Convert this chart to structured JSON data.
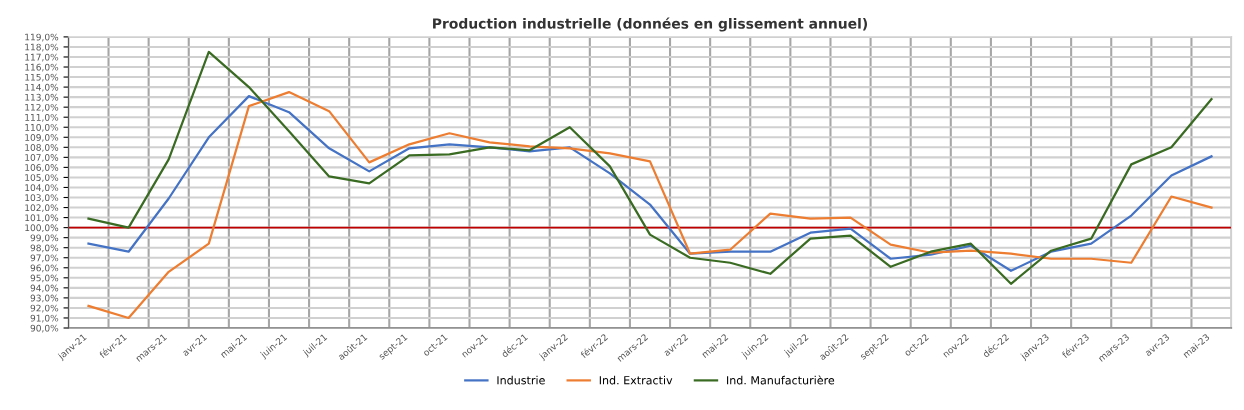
{
  "chart_data": {
    "type": "line",
    "title": "Production industrielle (données en glissement annuel)",
    "categories": [
      "janv-21",
      "févr-21",
      "mars-21",
      "avr-21",
      "mai-21",
      "juin-21",
      "juil-21",
      "août-21",
      "sept-21",
      "oct-21",
      "nov-21",
      "déc-21",
      "janv-22",
      "févr-22",
      "mars-22",
      "avr-22",
      "mai-22",
      "juin-22",
      "juil-22",
      "août-22",
      "sept-22",
      "oct-22",
      "nov-22",
      "déc-22",
      "janv-23",
      "févr-23",
      "mars-23",
      "avr-23",
      "mai-23"
    ],
    "series": [
      {
        "name": "Industrie",
        "color": "#4472c4",
        "values": [
          98.4,
          97.6,
          102.9,
          109.0,
          113.1,
          111.5,
          107.9,
          105.6,
          107.9,
          108.3,
          108.0,
          107.6,
          108.0,
          105.4,
          102.3,
          97.4,
          97.6,
          97.6,
          99.5,
          99.9,
          96.9,
          97.3,
          98.2,
          95.7,
          97.6,
          98.4,
          101.2,
          105.2,
          107.1
        ]
      },
      {
        "name": "Ind. Extractiv",
        "color": "#ed7d31",
        "values": [
          92.2,
          91.0,
          95.6,
          98.4,
          112.1,
          113.5,
          111.6,
          106.5,
          108.3,
          109.4,
          108.5,
          108.1,
          107.9,
          107.4,
          106.6,
          97.4,
          97.8,
          101.4,
          100.9,
          101.0,
          98.3,
          97.5,
          97.7,
          97.4,
          96.9,
          96.9,
          96.5,
          103.1,
          102.0
        ]
      },
      {
        "name": "Ind. Manufacturière",
        "color": "#3a6b22",
        "values": [
          100.9,
          100.0,
          106.8,
          117.5,
          114.0,
          109.6,
          105.1,
          104.4,
          107.2,
          107.3,
          108.0,
          107.7,
          110.0,
          106.1,
          99.3,
          97.0,
          96.5,
          95.4,
          98.9,
          99.2,
          96.1,
          97.6,
          98.4,
          94.4,
          97.7,
          98.9,
          106.3,
          108.0,
          112.8
        ]
      }
    ],
    "ylim": [
      90,
      119
    ],
    "yticks": [
      {
        "value": 90,
        "label": "90,0%"
      },
      {
        "value": 91,
        "label": "91,0%"
      },
      {
        "value": 92,
        "label": "92,0%"
      },
      {
        "value": 93,
        "label": "93,0%"
      },
      {
        "value": 94,
        "label": "94,0%"
      },
      {
        "value": 95,
        "label": "95,0%"
      },
      {
        "value": 96,
        "label": "96,0%"
      },
      {
        "value": 97,
        "label": "97,0%"
      },
      {
        "value": 98,
        "label": "98,0%"
      },
      {
        "value": 99,
        "label": "99,0%"
      },
      {
        "value": 100,
        "label": "100,0%"
      },
      {
        "value": 101,
        "label": "101,0%"
      },
      {
        "value": 102,
        "label": "102,0%"
      },
      {
        "value": 103,
        "label": "103,0%"
      },
      {
        "value": 104,
        "label": "104,0%"
      },
      {
        "value": 105,
        "label": "105,0%"
      },
      {
        "value": 106,
        "label": "106,0%"
      },
      {
        "value": 107,
        "label": "107,0%"
      },
      {
        "value": 108,
        "label": "108,0%"
      },
      {
        "value": 109,
        "label": "109,0%"
      },
      {
        "value": 110,
        "label": "110,0%"
      },
      {
        "value": 111,
        "label": "111,0%"
      },
      {
        "value": 112,
        "label": "112,0%"
      },
      {
        "value": 113,
        "label": "113,0%"
      },
      {
        "value": 114,
        "label": "114,0%"
      },
      {
        "value": 115,
        "label": "115,0%"
      },
      {
        "value": 116,
        "label": "116,0%"
      },
      {
        "value": 117,
        "label": "117,0%"
      },
      {
        "value": 118,
        "label": "118,0%"
      },
      {
        "value": 119,
        "label": "119,0%"
      }
    ],
    "ref_lines": [
      {
        "axis": "y",
        "value": 100,
        "color": "#c00000"
      }
    ],
    "grid": true,
    "legend": "bottom",
    "marker": "none",
    "line_style": "solid"
  }
}
